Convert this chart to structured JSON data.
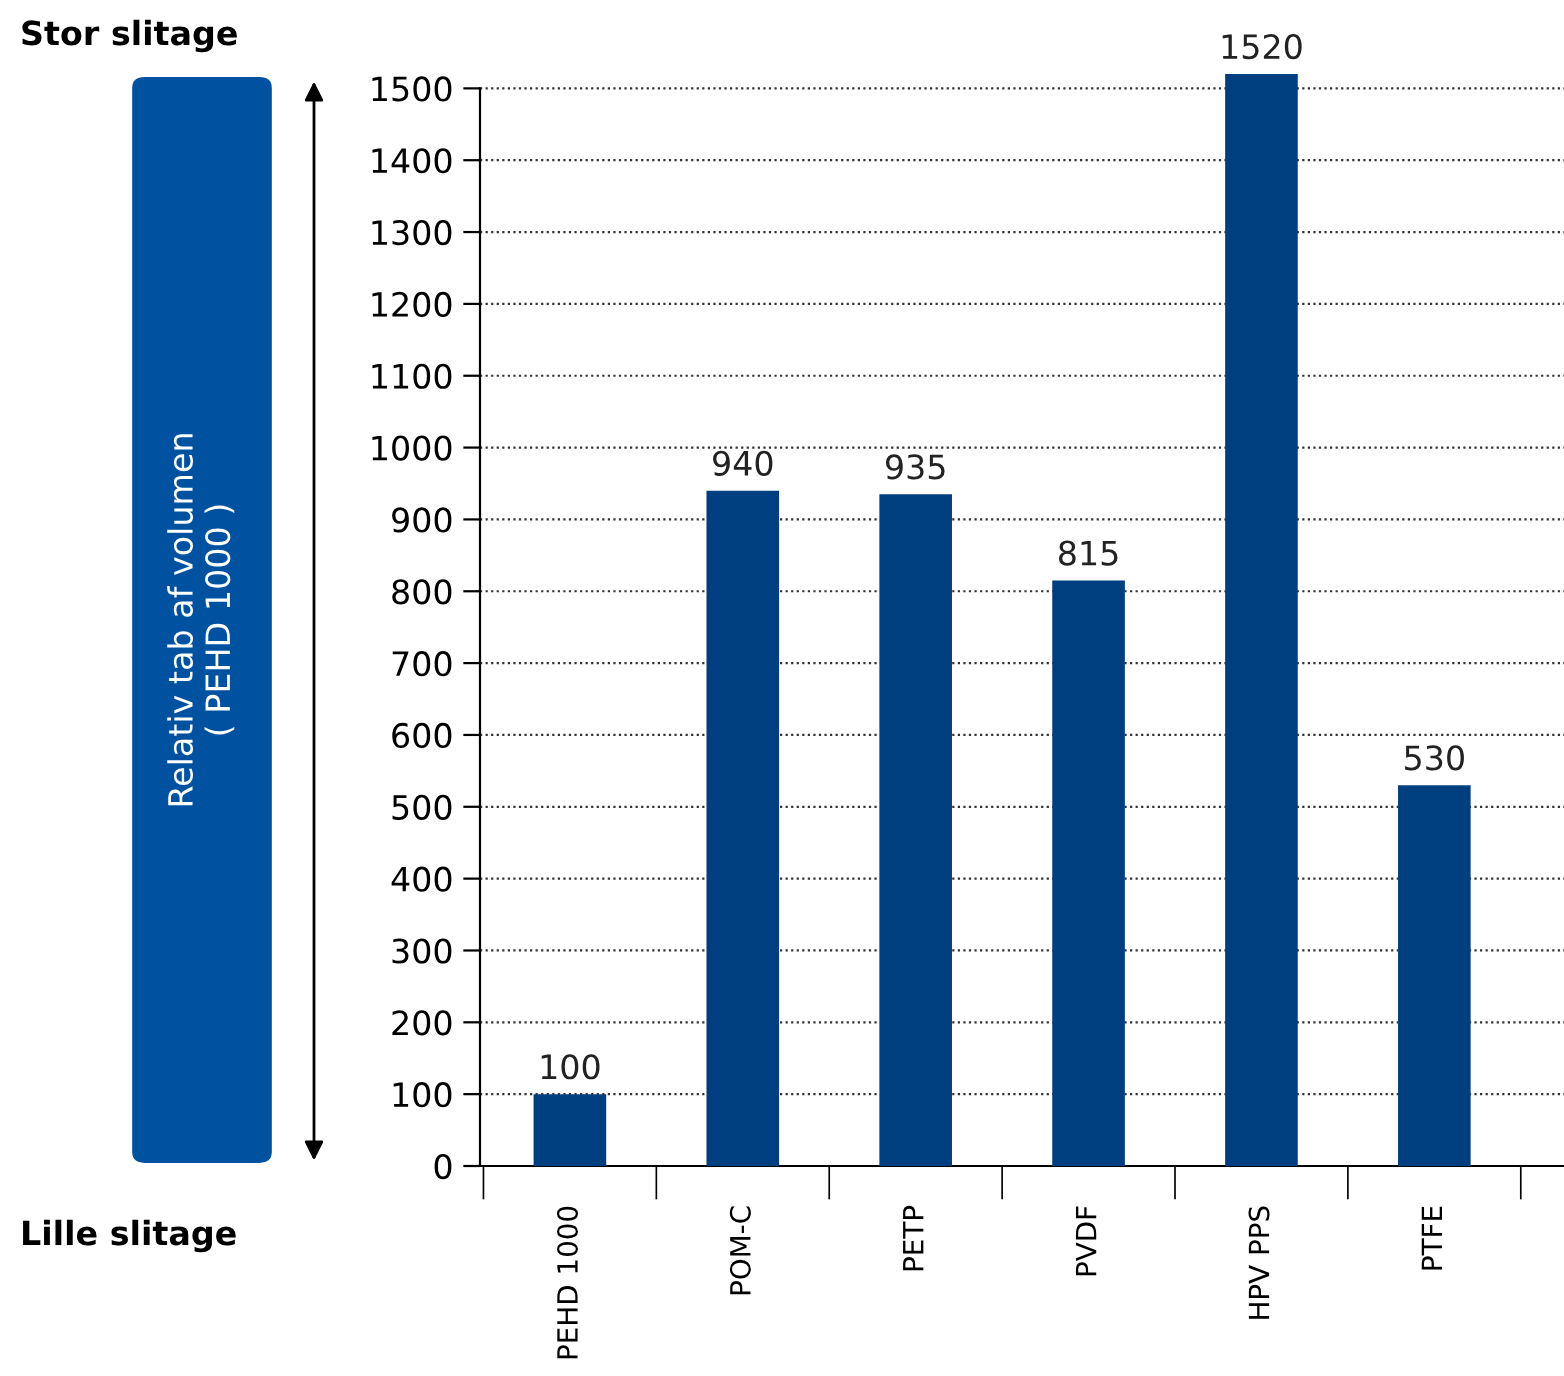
{
  "chart_data": {
    "type": "bar",
    "ylabel": "Relativ tab af volumen\n( PEHD 1000 )",
    "categories": [
      "PEHD 1000",
      "POM-C",
      "PETP",
      "PVDF",
      "HPV PPS",
      "PTFE"
    ],
    "values": [
      100,
      940,
      935,
      815,
      1520,
      530
    ],
    "color": "#003f7f",
    "data_labels": true,
    "ylim": [
      0,
      1520
    ],
    "yticks": [
      0,
      100,
      200,
      300,
      400,
      500,
      600,
      700,
      800,
      900,
      1000,
      1100,
      1200,
      1300,
      1400,
      1500
    ],
    "grid": "y",
    "legend": false,
    "annotations": [
      "Stor slitage",
      "Lille slitage"
    ]
  }
}
